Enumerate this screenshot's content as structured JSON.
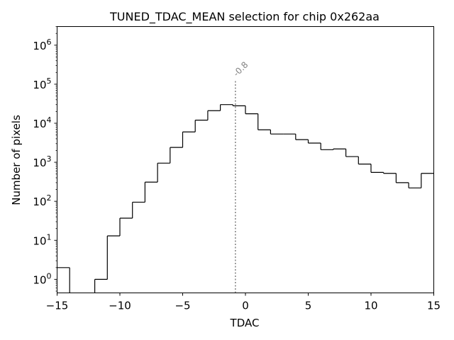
{
  "chart_data": {
    "type": "histogram-step",
    "title": "TUNED_TDAC_MEAN selection for chip 0x262aa",
    "xlabel": "TDAC",
    "ylabel": "Number of pixels",
    "xlim": [
      -15,
      15
    ],
    "ylim_log": [
      0.45,
      3000000
    ],
    "y_scale": "log",
    "x_ticks": [
      -15,
      -10,
      -5,
      0,
      5,
      10,
      15
    ],
    "x_tick_labels": [
      "−15",
      "−10",
      "−5",
      "0",
      "5",
      "10",
      "15"
    ],
    "y_ticks": [
      1,
      10,
      100,
      1000,
      10000,
      100000,
      1000000
    ],
    "y_tick_exponents": [
      "0",
      "1",
      "2",
      "3",
      "4",
      "5",
      "6"
    ],
    "bins": [
      {
        "x0": -15,
        "x1": -14,
        "count": 2
      },
      {
        "x0": -14,
        "x1": -13,
        "count": 0
      },
      {
        "x0": -13,
        "x1": -12,
        "count": 0
      },
      {
        "x0": -12,
        "x1": -11,
        "count": 1
      },
      {
        "x0": -11,
        "x1": -10,
        "count": 13
      },
      {
        "x0": -10,
        "x1": -9,
        "count": 37
      },
      {
        "x0": -9,
        "x1": -8,
        "count": 95
      },
      {
        "x0": -8,
        "x1": -7,
        "count": 310
      },
      {
        "x0": -7,
        "x1": -6,
        "count": 950
      },
      {
        "x0": -6,
        "x1": -5,
        "count": 2400
      },
      {
        "x0": -5,
        "x1": -4,
        "count": 6000
      },
      {
        "x0": -4,
        "x1": -3,
        "count": 12000
      },
      {
        "x0": -3,
        "x1": -2,
        "count": 21000
      },
      {
        "x0": -2,
        "x1": -1,
        "count": 30000
      },
      {
        "x0": -1,
        "x1": 0,
        "count": 28000
      },
      {
        "x0": 0,
        "x1": 1,
        "count": 17500
      },
      {
        "x0": 1,
        "x1": 2,
        "count": 6800
      },
      {
        "x0": 2,
        "x1": 3,
        "count": 5300
      },
      {
        "x0": 3,
        "x1": 4,
        "count": 5300
      },
      {
        "x0": 4,
        "x1": 5,
        "count": 3800
      },
      {
        "x0": 5,
        "x1": 6,
        "count": 3100
      },
      {
        "x0": 6,
        "x1": 7,
        "count": 2100
      },
      {
        "x0": 7,
        "x1": 8,
        "count": 2200
      },
      {
        "x0": 8,
        "x1": 9,
        "count": 1400
      },
      {
        "x0": 9,
        "x1": 10,
        "count": 900
      },
      {
        "x0": 10,
        "x1": 11,
        "count": 550
      },
      {
        "x0": 11,
        "x1": 12,
        "count": 520
      },
      {
        "x0": 12,
        "x1": 13,
        "count": 300
      },
      {
        "x0": 13,
        "x1": 14,
        "count": 220
      },
      {
        "x0": 14,
        "x1": 15,
        "count": 520
      }
    ],
    "mean_line": {
      "x": -0.8,
      "label": "-0.8",
      "y_top": 130000,
      "color": "#808080"
    },
    "step_color": "#000000",
    "grid": false,
    "legend": "none"
  }
}
